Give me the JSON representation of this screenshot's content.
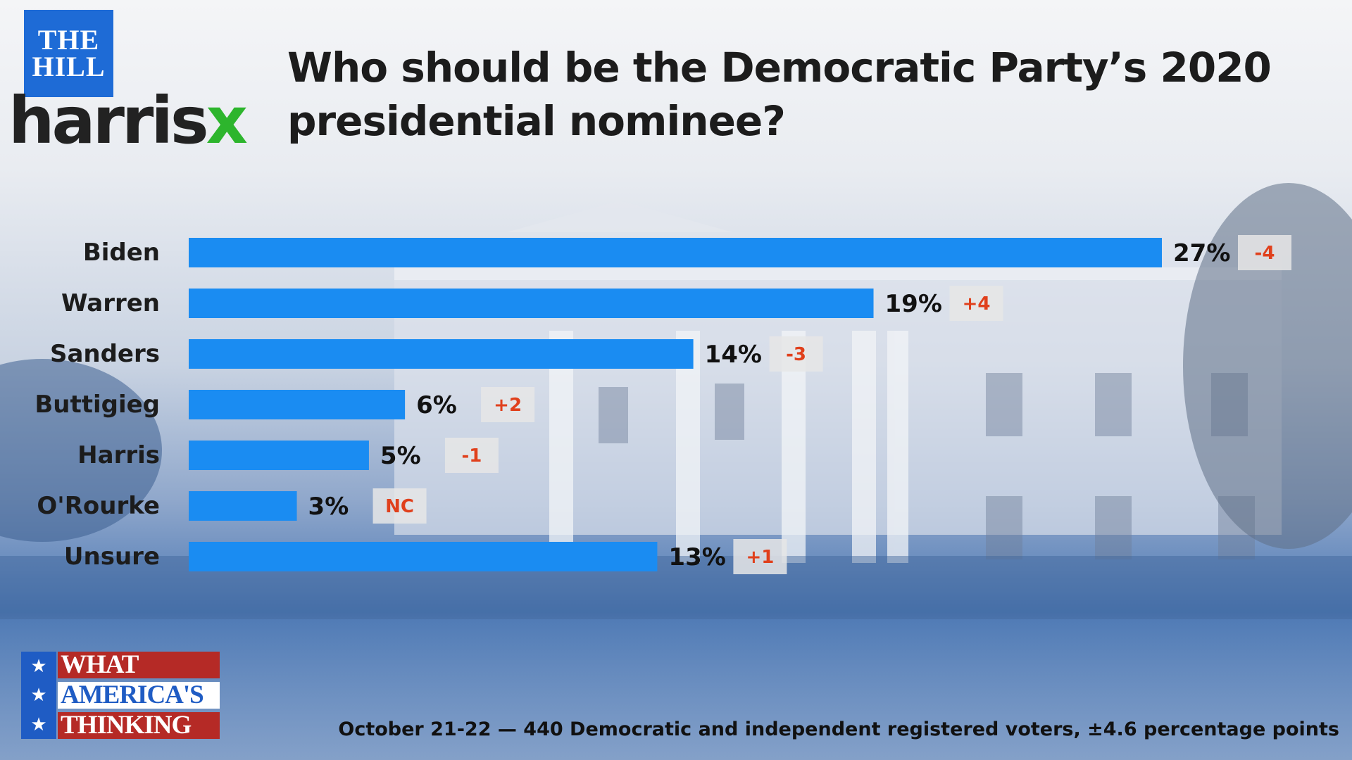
{
  "logos": {
    "hill_line1": "THE",
    "hill_line2": "HILL",
    "harris_text": "harris",
    "harris_x": "x",
    "wat_line1": "WHAT",
    "wat_line2": "AMERICA'S",
    "wat_line3": "THINKING",
    "star": "★"
  },
  "colors": {
    "bar": "#1a8cf2",
    "change_text": "#e0401c",
    "change_box": "#e6e6e6",
    "hill_blue": "#1e6bd6",
    "harris_green": "#2db52d"
  },
  "footnote": "October 21-22 — 440 Democratic and independent registered voters, ±4.6 percentage points",
  "chart_data": {
    "type": "bar",
    "orientation": "horizontal",
    "title": "Who should be the Democratic Party’s 2020 presidential nominee?",
    "categories": [
      "Biden",
      "Warren",
      "Sanders",
      "Buttigieg",
      "Harris",
      "O'Rourke",
      "Unsure"
    ],
    "values": [
      27,
      19,
      14,
      6,
      5,
      3,
      13
    ],
    "value_labels": [
      "27%",
      "19%",
      "14%",
      "6%",
      "5%",
      "3%",
      "13%"
    ],
    "changes": [
      "-4",
      "+4",
      "-3",
      "+2",
      "-1",
      "NC",
      "+1"
    ],
    "xlim": [
      0,
      27
    ]
  }
}
